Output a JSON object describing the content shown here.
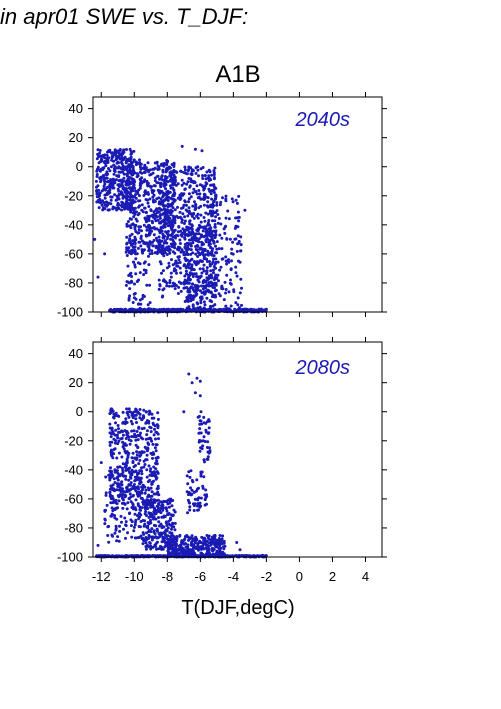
{
  "header": {
    "title": "in apr01 SWE vs. T_DJF:"
  },
  "colors": {
    "points": "#1a1ab4",
    "label": "#1a1ab4",
    "axis": "#000000"
  },
  "chart_data": {
    "type": "scatter",
    "title": "A1B",
    "xlabel": "T(DJF,degC)",
    "ylabel": "",
    "xlim": [
      -12.5,
      5
    ],
    "ylim": [
      -100,
      48
    ],
    "xticks": [
      -12,
      -10,
      -8,
      -6,
      -4,
      -2,
      0,
      2,
      4
    ],
    "yticks": [
      -100,
      -80,
      -60,
      -40,
      -20,
      0,
      20,
      40
    ],
    "grid": false,
    "panels": [
      {
        "label": "2040s",
        "clusters": [
          {
            "x": [
              -12.3,
              -10.0
            ],
            "y": [
              -30,
              12
            ],
            "n": 380
          },
          {
            "x": [
              -10.5,
              -7.5
            ],
            "y": [
              -60,
              5
            ],
            "n": 520
          },
          {
            "x": [
              -8.5,
              -5.0
            ],
            "y": [
              -90,
              0
            ],
            "n": 600
          },
          {
            "x": [
              -7.0,
              -5.2
            ],
            "y": [
              -100,
              -40
            ],
            "n": 220
          },
          {
            "x": [
              -5.5,
              -3.5
            ],
            "y": [
              -100,
              -20
            ],
            "n": 140
          },
          {
            "x": [
              -10.5,
              -9.0
            ],
            "y": [
              -100,
              -50
            ],
            "n": 70
          },
          {
            "x": [
              -11.5,
              -2.0
            ],
            "y": [
              -100,
              -98
            ],
            "n": 450
          }
        ],
        "scatter_points": [
          {
            "x": -7.1,
            "y": 14
          },
          {
            "x": -6.3,
            "y": 12
          },
          {
            "x": -5.9,
            "y": 11
          },
          {
            "x": -11.8,
            "y": -60
          },
          {
            "x": -12.2,
            "y": -76
          },
          {
            "x": -3.3,
            "y": -30
          },
          {
            "x": -12.4,
            "y": -50
          },
          {
            "x": -2.3,
            "y": -98
          }
        ]
      },
      {
        "label": "2080s",
        "clusters": [
          {
            "x": [
              -11.5,
              -8.5
            ],
            "y": [
              -60,
              2
            ],
            "n": 420
          },
          {
            "x": [
              -11.8,
              -9.5
            ],
            "y": [
              -90,
              -40
            ],
            "n": 160
          },
          {
            "x": [
              -9.5,
              -7.5
            ],
            "y": [
              -95,
              -60
            ],
            "n": 260
          },
          {
            "x": [
              -8.0,
              -4.5
            ],
            "y": [
              -100,
              -85
            ],
            "n": 330
          },
          {
            "x": [
              -6.8,
              -5.6
            ],
            "y": [
              -70,
              -40
            ],
            "n": 60
          },
          {
            "x": [
              -6.2,
              -5.4
            ],
            "y": [
              -35,
              0
            ],
            "n": 45
          },
          {
            "x": [
              -12.3,
              -2.0
            ],
            "y": [
              -100,
              -99
            ],
            "n": 500
          }
        ],
        "scatter_points": [
          {
            "x": -6.7,
            "y": 26
          },
          {
            "x": -6.2,
            "y": 23
          },
          {
            "x": -6.0,
            "y": 21
          },
          {
            "x": -6.5,
            "y": 20
          },
          {
            "x": -6.3,
            "y": 13
          },
          {
            "x": -6.0,
            "y": 11
          },
          {
            "x": -7.0,
            "y": 0
          },
          {
            "x": -3.8,
            "y": -90
          },
          {
            "x": -3.6,
            "y": -95
          },
          {
            "x": -12.0,
            "y": -35
          },
          {
            "x": -12.2,
            "y": -92
          }
        ]
      }
    ]
  }
}
